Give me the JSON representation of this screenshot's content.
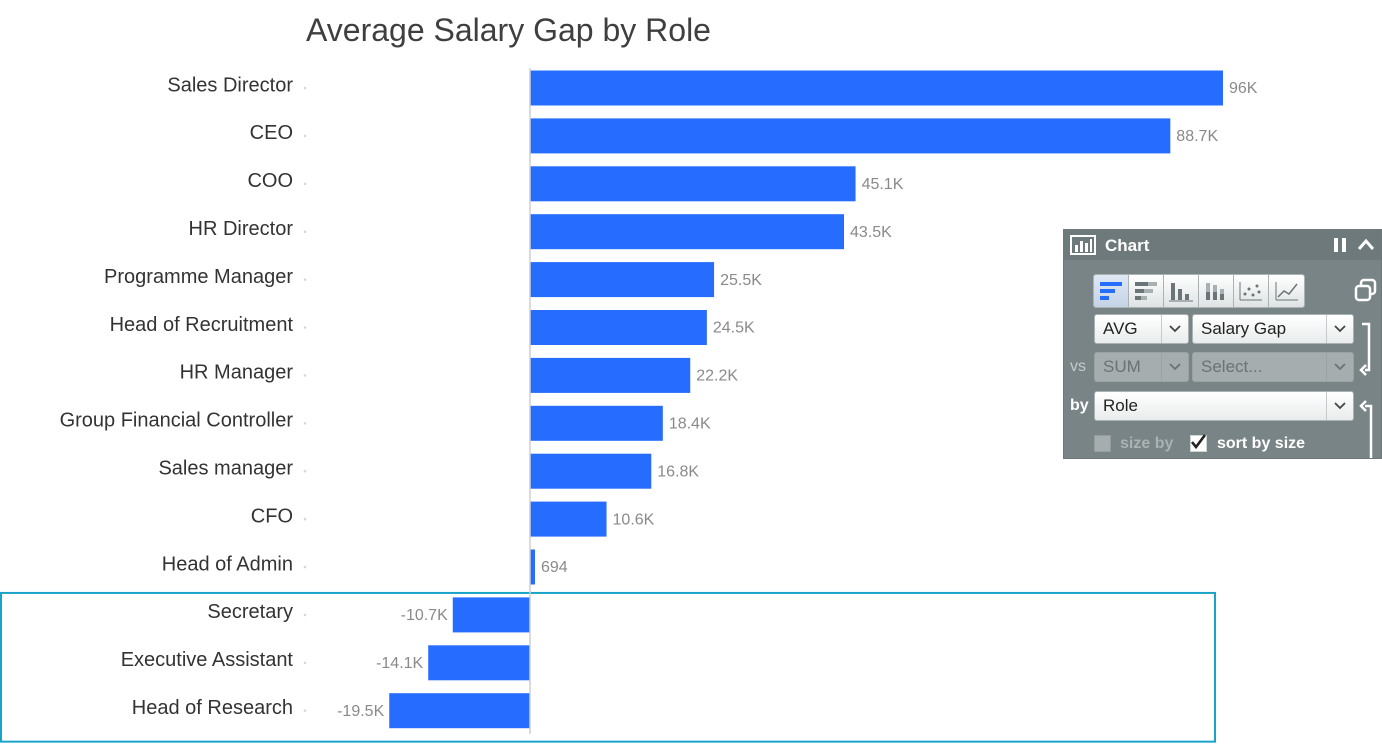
{
  "chart_data": {
    "type": "bar",
    "orientation": "horizontal",
    "title": "Average Salary Gap by Role",
    "categories": [
      "Sales Director",
      "CEO",
      "COO",
      "HR Director",
      "Programme Manager",
      "Head of Recruitment",
      "HR Manager",
      "Group Financial Controller",
      "Sales manager",
      "CFO",
      "Head of Admin",
      "Secretary",
      "Executive Assistant",
      "Head of Research"
    ],
    "values": [
      96000,
      88700,
      45100,
      43500,
      25500,
      24500,
      22200,
      18400,
      16800,
      10600,
      694,
      -10700,
      -14100,
      -19500
    ],
    "value_labels": [
      "96K",
      "88.7K",
      "45.1K",
      "43.5K",
      "25.5K",
      "24.5K",
      "22.2K",
      "18.4K",
      "16.8K",
      "10.6K",
      "694",
      "-10.7K",
      "-14.1K",
      "-19.5K"
    ],
    "xlim": [
      -31000,
      96000
    ],
    "bar_color": "#256cff",
    "highlight_color": "#1aa3c8",
    "highlight_categories": [
      "Secretary",
      "Executive Assistant",
      "Head of Research"
    ],
    "grid": false,
    "xlabel": "",
    "ylabel": ""
  },
  "panel": {
    "title": "Chart",
    "icons": {
      "header": "bar-chart-icon",
      "pause": "pause-icon",
      "collapse": "chevron-up-icon",
      "copy": "copy-icon"
    },
    "chart_types": [
      {
        "name": "sorted-bar-icon",
        "active": true
      },
      {
        "name": "stacked-bar-icon",
        "active": false
      },
      {
        "name": "column-icon",
        "active": false
      },
      {
        "name": "stacked-column-icon",
        "active": false
      },
      {
        "name": "scatter-icon",
        "active": false
      },
      {
        "name": "line-icon",
        "active": false
      }
    ],
    "aggregate": "AVG",
    "measure": "Salary Gap",
    "vs_label": "vs",
    "vs_aggregate": "SUM",
    "vs_measure": "Select...",
    "by_label": "by",
    "by_field": "Role",
    "size_by_label": "size by",
    "size_by_checked": false,
    "sort_by_size_label": "sort by size",
    "sort_by_size_checked": true
  }
}
